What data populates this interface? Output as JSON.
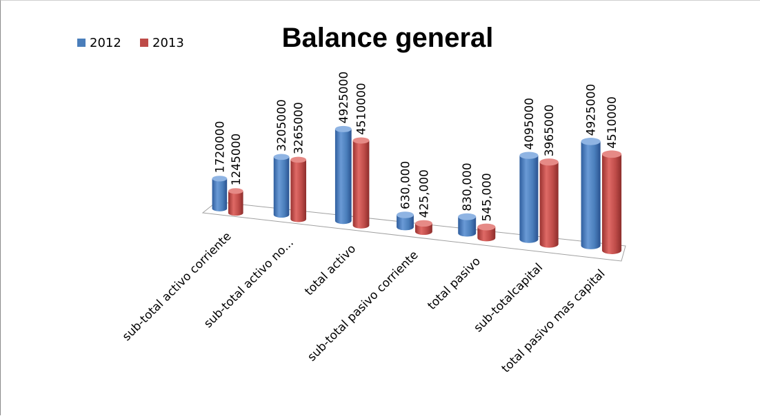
{
  "chart_data": {
    "type": "bar",
    "title": "Balance general",
    "categories": [
      "sub-total activo corriente",
      "sub-total activo no...",
      "total activo",
      "sub-total pasivo corriente",
      "total pasivo",
      "sub-totalcapital",
      "total pasivo mas capital"
    ],
    "series": [
      {
        "name": "2012",
        "color": "#4a7ebb",
        "values": [
          1720000,
          3205000,
          4925000,
          630000,
          830000,
          4095000,
          4925000
        ],
        "labels": [
          "1720000",
          "3205000",
          "4925000",
          "630,000",
          "830,000",
          "4095000",
          "4925000"
        ]
      },
      {
        "name": "2013",
        "color": "#be4b48",
        "values": [
          1245000,
          3265000,
          4510000,
          425000,
          545000,
          3965000,
          4510000
        ],
        "labels": [
          "1245000",
          "3265000",
          "4510000",
          "425,000",
          "545,000",
          "3965000",
          "4510000"
        ]
      }
    ],
    "legend": "top-left",
    "grid": false,
    "style": "3d-cylinder"
  }
}
